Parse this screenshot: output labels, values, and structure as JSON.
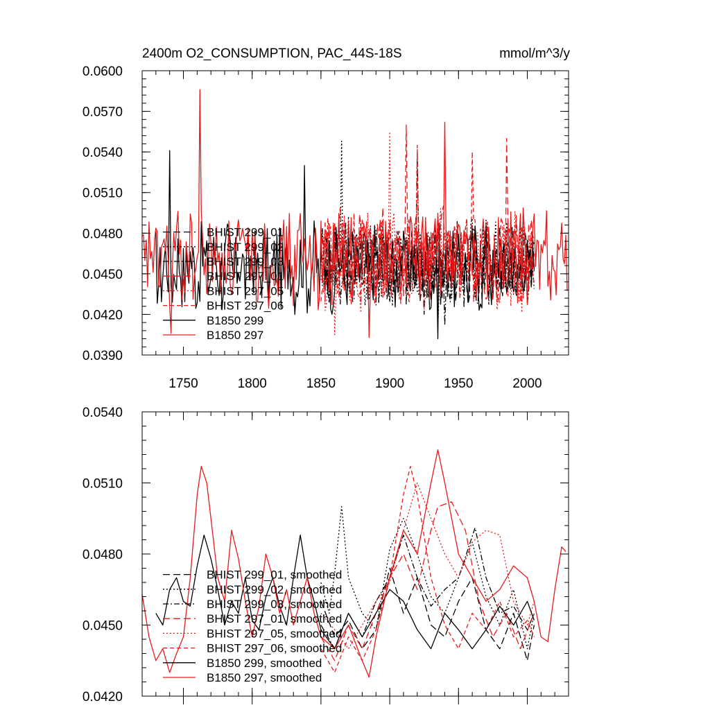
{
  "chart_data": [
    {
      "type": "line",
      "title_left": "2400m O2_CONSUMPTION, PAC_44S-18S",
      "title_right": "mmol/m^3/y",
      "xlabel": "",
      "ylabel": "",
      "xlim": [
        1720,
        2030
      ],
      "ylim": [
        0.039,
        0.06
      ],
      "x_ticks": [
        "1750",
        "1800",
        "1850",
        "1900",
        "1950",
        "2000"
      ],
      "y_ticks": [
        "0.0390",
        "0.0420",
        "0.0450",
        "0.0480",
        "0.0510",
        "0.0540",
        "0.0570",
        "0.0600"
      ],
      "legend_position": "lower-left",
      "series": [
        {
          "name": "BHIST 299_01",
          "color": "#000000",
          "dash": "long-dash",
          "x_range": [
            1850,
            2005
          ],
          "mean": 0.0458,
          "amp": 0.0025,
          "seed": 11,
          "peaks": [
            [
              1893,
              0.048
            ],
            [
              1925,
              0.042
            ]
          ]
        },
        {
          "name": "BHIST 299_02",
          "color": "#000000",
          "dash": "dot",
          "x_range": [
            1850,
            2005
          ],
          "mean": 0.0458,
          "amp": 0.0028,
          "seed": 12,
          "peaks": [
            [
              1865,
              0.0548
            ],
            [
              1935,
              0.041
            ]
          ]
        },
        {
          "name": "BHIST 299_03",
          "color": "#000000",
          "dash": "dash-dot",
          "x_range": [
            1850,
            2005
          ],
          "mean": 0.0457,
          "amp": 0.0025,
          "seed": 13,
          "peaks": [
            [
              1920,
              0.054
            ],
            [
              1940,
              0.0412
            ]
          ]
        },
        {
          "name": "BHIST 297_01",
          "color": "#e8191a",
          "dash": "long-dash",
          "x_range": [
            1850,
            2005
          ],
          "mean": 0.0462,
          "amp": 0.003,
          "seed": 14,
          "peaks": [
            [
              1912,
              0.056
            ],
            [
              1985,
              0.055
            ]
          ]
        },
        {
          "name": "BHIST 297_05",
          "color": "#e8191a",
          "dash": "dot",
          "x_range": [
            1850,
            2005
          ],
          "mean": 0.046,
          "amp": 0.003,
          "seed": 15,
          "peaks": [
            [
              1900,
              0.0555
            ],
            [
              1860,
              0.0405
            ]
          ]
        },
        {
          "name": "BHIST 297_06",
          "color": "#e8191a",
          "dash": "dash",
          "x_range": [
            1850,
            2005
          ],
          "mean": 0.0462,
          "amp": 0.003,
          "seed": 16,
          "peaks": [
            [
              1920,
              0.0545
            ],
            [
              1960,
              0.054
            ]
          ]
        },
        {
          "name": "B1850 299",
          "color": "#000000",
          "dash": "solid",
          "x_range": [
            1730,
            2005
          ],
          "mean": 0.0455,
          "amp": 0.0028,
          "seed": 17,
          "peaks": [
            [
              1740,
              0.0541
            ],
            [
              1838,
              0.053
            ],
            [
              1935,
              0.0402
            ]
          ]
        },
        {
          "name": "B1850 297",
          "color": "#e8191a",
          "dash": "solid",
          "x_range": [
            1720,
            2029
          ],
          "mean": 0.0462,
          "amp": 0.003,
          "seed": 18,
          "peaks": [
            [
              1762,
              0.0586
            ],
            [
              1940,
              0.0562
            ],
            [
              1885,
              0.0403
            ],
            [
              1741,
              0.0406
            ]
          ]
        }
      ]
    },
    {
      "type": "line",
      "title_left": "",
      "title_right": "",
      "xlabel": "",
      "ylabel": "",
      "xlim": [
        1720,
        2030
      ],
      "ylim": [
        0.042,
        0.054
      ],
      "y_ticks": [
        "0.0420",
        "0.0450",
        "0.0480",
        "0.0510",
        "0.0540"
      ],
      "legend_position": "lower-left",
      "series": [
        {
          "name": "BHIST 299_01, smoothed",
          "color": "#000000",
          "dash": "long-dash",
          "x": [
            1850,
            1860,
            1870,
            1880,
            1890,
            1895,
            1900,
            1910,
            1920,
            1930,
            1940,
            1950,
            1960,
            1970,
            1980,
            1990,
            2000,
            2005
          ],
          "y": [
            0.046,
            0.0445,
            0.0452,
            0.044,
            0.0448,
            0.0462,
            0.0474,
            0.0455,
            0.047,
            0.045,
            0.0445,
            0.046,
            0.047,
            0.0448,
            0.044,
            0.0455,
            0.0435,
            0.045
          ]
        },
        {
          "name": "BHIST 299_02, smoothed",
          "color": "#000000",
          "dash": "dot",
          "x": [
            1850,
            1856,
            1860,
            1865,
            1870,
            1880,
            1890,
            1900,
            1910,
            1920,
            1930,
            1940,
            1950,
            1960,
            1970,
            1980,
            1990,
            2000,
            2005
          ],
          "y": [
            0.0468,
            0.0455,
            0.0472,
            0.05,
            0.047,
            0.0455,
            0.0448,
            0.0482,
            0.0495,
            0.048,
            0.0462,
            0.0455,
            0.047,
            0.0485,
            0.0462,
            0.045,
            0.0465,
            0.044,
            0.0455
          ]
        },
        {
          "name": "BHIST 299_03, smoothed",
          "color": "#000000",
          "dash": "dash-dot",
          "x": [
            1850,
            1860,
            1870,
            1880,
            1890,
            1900,
            1910,
            1920,
            1930,
            1940,
            1950,
            1962,
            1970,
            1980,
            1990,
            2000,
            2005
          ],
          "y": [
            0.045,
            0.044,
            0.0455,
            0.0445,
            0.046,
            0.047,
            0.0488,
            0.047,
            0.0458,
            0.0465,
            0.047,
            0.0491,
            0.047,
            0.0455,
            0.0458,
            0.0448,
            0.0455
          ]
        },
        {
          "name": "BHIST 297_01, smoothed",
          "color": "#e8191a",
          "dash": "long-dash",
          "x": [
            1850,
            1860,
            1870,
            1880,
            1890,
            1900,
            1910,
            1920,
            1930,
            1935,
            1945,
            1955,
            1965,
            1975,
            1985,
            1995,
            2005
          ],
          "y": [
            0.0445,
            0.0435,
            0.045,
            0.044,
            0.0455,
            0.047,
            0.048,
            0.0465,
            0.049,
            0.05,
            0.0502,
            0.049,
            0.046,
            0.0445,
            0.0455,
            0.044,
            0.0455
          ]
        },
        {
          "name": "BHIST 297_05, smoothed",
          "color": "#e8191a",
          "dash": "dot",
          "x": [
            1850,
            1860,
            1870,
            1880,
            1890,
            1900,
            1910,
            1920,
            1930,
            1940,
            1950,
            1960,
            1970,
            1980,
            1990,
            2000,
            2005
          ],
          "y": [
            0.0455,
            0.0448,
            0.044,
            0.045,
            0.046,
            0.0468,
            0.049,
            0.051,
            0.0495,
            0.048,
            0.047,
            0.0485,
            0.049,
            0.0488,
            0.046,
            0.045,
            0.046
          ]
        },
        {
          "name": "BHIST 297_06, smoothed",
          "color": "#e8191a",
          "dash": "dash",
          "x": [
            1850,
            1860,
            1870,
            1880,
            1890,
            1900,
            1910,
            1915,
            1920,
            1930,
            1940,
            1950,
            1960,
            1970,
            1980,
            1990,
            2000,
            2005
          ],
          "y": [
            0.044,
            0.043,
            0.0445,
            0.0435,
            0.0448,
            0.047,
            0.0505,
            0.0517,
            0.0505,
            0.047,
            0.045,
            0.044,
            0.0455,
            0.0448,
            0.046,
            0.0445,
            0.0452,
            0.0445
          ]
        },
        {
          "name": "B1850 299, smoothed",
          "color": "#000000",
          "dash": "solid",
          "x": [
            1730,
            1735,
            1740,
            1745,
            1750,
            1755,
            1760,
            1765,
            1770,
            1775,
            1780,
            1785,
            1790,
            1795,
            1800,
            1805,
            1810,
            1815,
            1820,
            1825,
            1830,
            1835,
            1840,
            1845,
            1850,
            1860,
            1870,
            1880,
            1890,
            1900,
            1910,
            1920,
            1930,
            1940,
            1950,
            1960,
            1970,
            1980,
            1990,
            2000,
            2005
          ],
          "y": [
            0.0455,
            0.045,
            0.0465,
            0.047,
            0.046,
            0.0458,
            0.0475,
            0.0488,
            0.0478,
            0.0465,
            0.045,
            0.046,
            0.0455,
            0.047,
            0.0452,
            0.0448,
            0.0462,
            0.047,
            0.0458,
            0.045,
            0.047,
            0.0488,
            0.047,
            0.046,
            0.0448,
            0.044,
            0.0455,
            0.0445,
            0.0455,
            0.0465,
            0.046,
            0.0448,
            0.044,
            0.0455,
            0.0448,
            0.044,
            0.0448,
            0.0458,
            0.045,
            0.046,
            0.0452
          ]
        },
        {
          "name": "B1850 297, smoothed",
          "color": "#e8191a",
          "dash": "solid",
          "x": [
            1720,
            1725,
            1730,
            1735,
            1740,
            1745,
            1750,
            1755,
            1760,
            1763,
            1767,
            1770,
            1775,
            1780,
            1785,
            1790,
            1795,
            1800,
            1805,
            1810,
            1815,
            1820,
            1825,
            1830,
            1835,
            1840,
            1845,
            1850,
            1860,
            1870,
            1880,
            1885,
            1890,
            1900,
            1910,
            1920,
            1930,
            1935,
            1940,
            1950,
            1960,
            1970,
            1980,
            1990,
            2000,
            2005,
            2010,
            2015,
            2020,
            2025,
            2028
          ],
          "y": [
            0.0463,
            0.0445,
            0.0435,
            0.044,
            0.043,
            0.0438,
            0.0445,
            0.047,
            0.0505,
            0.0517,
            0.051,
            0.0495,
            0.047,
            0.046,
            0.049,
            0.0478,
            0.046,
            0.0445,
            0.0458,
            0.048,
            0.047,
            0.0455,
            0.0465,
            0.045,
            0.046,
            0.047,
            0.0455,
            0.0445,
            0.044,
            0.045,
            0.0435,
            0.0428,
            0.0445,
            0.047,
            0.049,
            0.048,
            0.051,
            0.0524,
            0.051,
            0.048,
            0.047,
            0.046,
            0.0465,
            0.0475,
            0.047,
            0.046,
            0.0445,
            0.0443,
            0.0465,
            0.0483,
            0.0481
          ]
        }
      ]
    }
  ]
}
